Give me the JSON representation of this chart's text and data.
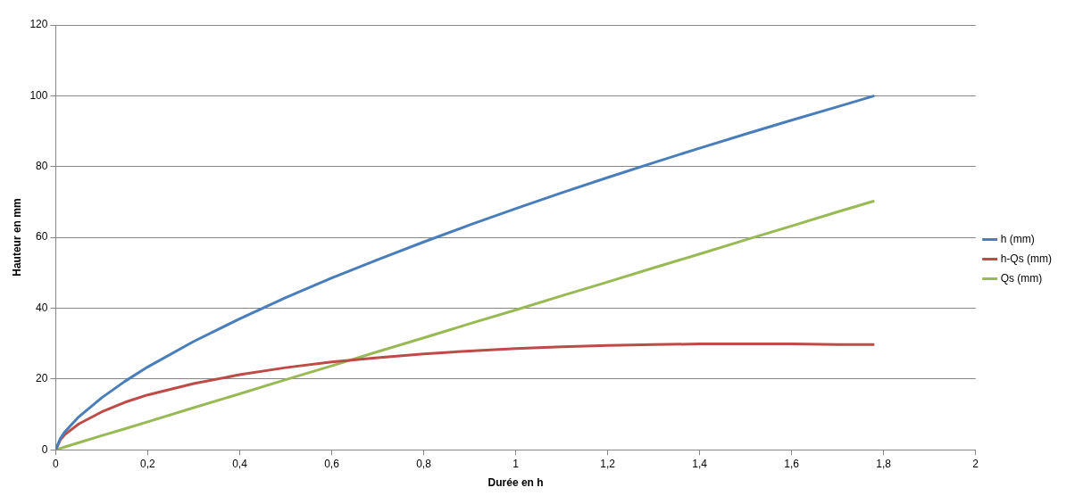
{
  "chart_data": {
    "type": "line",
    "xlabel": "Durée en h",
    "ylabel": "Hauteur en mm",
    "x": [
      0,
      0.01,
      0.02,
      0.05,
      0.1,
      0.15,
      0.2,
      0.3,
      0.4,
      0.5,
      0.6,
      0.7,
      0.8,
      0.9,
      1.0,
      1.1,
      1.2,
      1.3,
      1.4,
      1.5,
      1.6,
      1.7,
      1.78
    ],
    "series": [
      {
        "name": "h (mm)",
        "color": "#4a7ebb",
        "values": [
          0,
          3.2,
          5.1,
          9.3,
          14.7,
          19.3,
          23.4,
          30.6,
          37.0,
          43.0,
          48.5,
          53.7,
          58.7,
          63.5,
          68.1,
          72.6,
          76.9,
          81.1,
          85.2,
          89.2,
          93.1,
          96.9,
          100
        ]
      },
      {
        "name": "h-Qs (mm)",
        "color": "#be4b48",
        "values": [
          0,
          2.8,
          4.3,
          7.3,
          10.7,
          13.4,
          15.5,
          18.7,
          21.2,
          23.2,
          24.8,
          26.0,
          27.1,
          27.9,
          28.6,
          29.1,
          29.5,
          29.7,
          29.9,
          29.9,
          29.9,
          29.7,
          29.7
        ]
      },
      {
        "name": "Qs (mm)",
        "color": "#98b954",
        "values": [
          0,
          0.4,
          0.8,
          2.0,
          4.0,
          5.9,
          7.9,
          11.9,
          15.8,
          19.8,
          23.7,
          27.7,
          31.6,
          35.6,
          39.5,
          43.5,
          47.4,
          51.4,
          55.3,
          59.3,
          63.2,
          67.2,
          70.3
        ]
      }
    ],
    "xlim": [
      0,
      2
    ],
    "xticks": [
      0,
      {
        "value": 0.2,
        "label": "0,2"
      },
      {
        "value": 0.4,
        "label": "0,4"
      },
      {
        "value": 0.6,
        "label": "0,6"
      },
      {
        "value": 0.8,
        "label": "0,8"
      },
      1,
      {
        "value": 1.2,
        "label": "1,2"
      },
      {
        "value": 1.4,
        "label": "1,4"
      },
      {
        "value": 1.6,
        "label": "1,6"
      },
      {
        "value": 1.8,
        "label": "1,8"
      },
      2
    ],
    "ylim": [
      0,
      120
    ],
    "yticks": [
      0,
      20,
      40,
      60,
      80,
      100,
      120
    ],
    "grid": "y",
    "legend": "right",
    "marker": "none",
    "line_style": "solid"
  }
}
